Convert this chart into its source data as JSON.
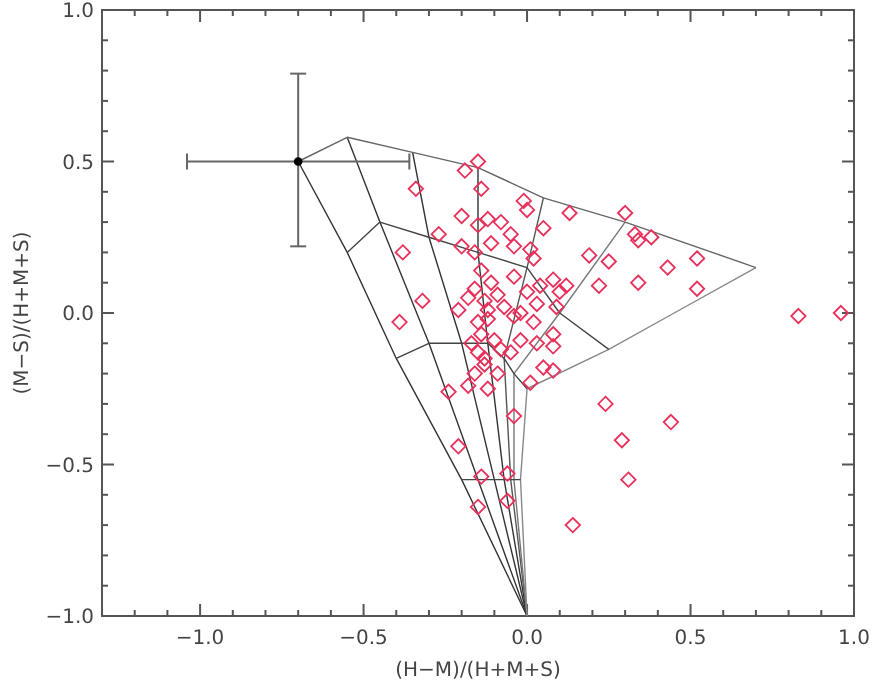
{
  "chart_data": {
    "type": "scatter",
    "xlabel": "(H−M)/(H+M+S)",
    "ylabel": "(M−S)/(H+M+S)",
    "xlim": [
      -1.3,
      1.0
    ],
    "ylim": [
      -1.0,
      1.0
    ],
    "xticks": [
      {
        "value": -1.2,
        "label": null
      },
      {
        "value": -1.1,
        "label": null
      },
      {
        "value": -1,
        "label": "−1.0"
      },
      {
        "value": -0.9,
        "label": null
      },
      {
        "value": -0.8,
        "label": null
      },
      {
        "value": -0.7,
        "label": null
      },
      {
        "value": -0.6,
        "label": null
      },
      {
        "value": -0.5,
        "label": "−0.5"
      },
      {
        "value": -0.4,
        "label": null
      },
      {
        "value": -0.3,
        "label": null
      },
      {
        "value": -0.2,
        "label": null
      },
      {
        "value": -0.1,
        "label": null
      },
      {
        "value": 0,
        "label": "0.0"
      },
      {
        "value": 0.1,
        "label": null
      },
      {
        "value": 0.2,
        "label": null
      },
      {
        "value": 0.3,
        "label": null
      },
      {
        "value": 0.4,
        "label": null
      },
      {
        "value": 0.5,
        "label": "0.5"
      },
      {
        "value": 0.6,
        "label": null
      },
      {
        "value": 0.7,
        "label": null
      },
      {
        "value": 0.8,
        "label": null
      },
      {
        "value": 0.9,
        "label": null
      },
      {
        "value": 1,
        "label": "1.0"
      }
    ],
    "yticks": [
      {
        "value": -1,
        "label": "−1.0"
      },
      {
        "value": -0.9,
        "label": null
      },
      {
        "value": -0.8,
        "label": null
      },
      {
        "value": -0.7,
        "label": null
      },
      {
        "value": -0.6,
        "label": null
      },
      {
        "value": -0.5,
        "label": "−0.5"
      },
      {
        "value": -0.4,
        "label": null
      },
      {
        "value": -0.3,
        "label": null
      },
      {
        "value": -0.2,
        "label": null
      },
      {
        "value": -0.1,
        "label": null
      },
      {
        "value": 0,
        "label": "0.0"
      },
      {
        "value": 0.1,
        "label": null
      },
      {
        "value": 0.2,
        "label": null
      },
      {
        "value": 0.3,
        "label": null
      },
      {
        "value": 0.4,
        "label": null
      },
      {
        "value": 0.5,
        "label": "0.5"
      },
      {
        "value": 0.6,
        "label": null
      },
      {
        "value": 0.7,
        "label": null
      },
      {
        "value": 0.8,
        "label": null
      },
      {
        "value": 0.9,
        "label": null
      },
      {
        "value": 1,
        "label": "1.0"
      }
    ],
    "series": [
      {
        "type": "line",
        "color": "#333333",
        "marker": "none",
        "x": [
          0,
          -0.2,
          -0.4,
          -0.55,
          -0.7
        ],
        "values": [
          -1,
          -0.55,
          -0.15,
          0.2,
          0.5
        ]
      },
      {
        "type": "line",
        "color": "#333333",
        "marker": "none",
        "x": [
          0,
          -0.15,
          -0.3,
          -0.45,
          -0.55
        ],
        "values": [
          -1,
          -0.55,
          -0.1,
          0.3,
          0.58
        ]
      },
      {
        "type": "line",
        "color": "#333333",
        "marker": "none",
        "x": [
          0,
          -0.1,
          -0.2,
          -0.3,
          -0.35
        ],
        "values": [
          -1,
          -0.55,
          -0.1,
          0.25,
          0.53
        ]
      },
      {
        "type": "line",
        "color": "#333333",
        "marker": "none",
        "x": [
          0,
          -0.07,
          -0.12,
          -0.15,
          -0.15
        ],
        "values": [
          -1,
          -0.55,
          -0.1,
          0.2,
          0.48
        ]
      },
      {
        "type": "line",
        "color": "#555555",
        "marker": "none",
        "x": [
          0,
          -0.05,
          -0.07,
          0,
          0.05
        ],
        "values": [
          -1,
          -0.55,
          -0.15,
          0.15,
          0.38
        ]
      },
      {
        "type": "line",
        "color": "#777777",
        "marker": "none",
        "x": [
          0,
          -0.04,
          -0.04,
          0.1,
          0.3
        ],
        "values": [
          -1,
          -0.55,
          -0.2,
          0,
          0.3
        ]
      },
      {
        "type": "line",
        "color": "#888888",
        "marker": "none",
        "x": [
          0,
          -0.02,
          0,
          0.25,
          0.45,
          0.7
        ],
        "values": [
          -1,
          -0.55,
          -0.25,
          -0.12,
          0,
          0.15
        ]
      },
      {
        "type": "line",
        "color": "#444444",
        "marker": "none",
        "x": [
          -0.2,
          -0.15,
          -0.1,
          -0.07,
          -0.05,
          -0.04,
          -0.02
        ],
        "values": [
          -0.55,
          -0.55,
          -0.55,
          -0.55,
          -0.55,
          -0.55,
          -0.55
        ]
      },
      {
        "type": "line",
        "color": "#444444",
        "marker": "none",
        "x": [
          -0.4,
          -0.3,
          -0.2,
          -0.12,
          -0.07,
          -0.04,
          0
        ],
        "values": [
          -0.15,
          -0.1,
          -0.1,
          -0.1,
          -0.15,
          -0.2,
          -0.25
        ]
      },
      {
        "type": "line",
        "color": "#444444",
        "marker": "none",
        "x": [
          -0.55,
          -0.45,
          -0.3,
          -0.15,
          0,
          0.1,
          0.25
        ],
        "values": [
          0.2,
          0.3,
          0.25,
          0.2,
          0.15,
          0,
          -0.12
        ]
      },
      {
        "type": "line",
        "color": "#666666",
        "marker": "none",
        "x": [
          -0.7,
          -0.55,
          -0.35,
          -0.15,
          0.05,
          0.3,
          0.7
        ],
        "values": [
          0.5,
          0.58,
          0.53,
          0.48,
          0.38,
          0.3,
          0.15
        ]
      },
      {
        "type": "scatter",
        "color": "#e8305a",
        "marker": "diamond",
        "x": [
          -0.34,
          -0.19,
          -0.15,
          -0.14,
          -0.2,
          -0.15,
          -0.12,
          -0.08,
          -0.27,
          -0.38,
          -0.2,
          -0.16,
          -0.11,
          -0.32,
          -0.21,
          -0.16,
          -0.13,
          -0.11,
          -0.07,
          -0.04,
          -0.02,
          -0.01,
          0,
          0.13,
          0.3,
          -0.05,
          0.05,
          -0.04,
          0.01,
          0.02,
          0.19,
          0.25,
          0.33,
          0.34,
          0.38,
          0.43,
          0.52,
          0.52,
          0.34,
          0.22,
          0.12,
          0.08,
          0.04,
          0.1,
          0,
          0.03,
          0.09,
          -0.12,
          -0.04,
          0.02,
          0.08,
          -0.02,
          0.03,
          0.08,
          -0.08,
          -0.05,
          0.83,
          0.96,
          0.05,
          0.08,
          -0.13,
          -0.09,
          0.01,
          -0.12,
          -0.24,
          -0.18,
          -0.04,
          0.24,
          0.44,
          -0.39,
          0.29,
          0.31,
          -0.21,
          -0.14,
          -0.06,
          -0.06,
          -0.15,
          0.14,
          -0.15,
          -0.14,
          -0.12,
          -0.17,
          -0.15,
          -0.1,
          -0.13,
          -0.16,
          -0.18,
          -0.14,
          -0.09
        ],
        "values": [
          0.41,
          0.47,
          0.5,
          0.41,
          0.32,
          0.29,
          0.31,
          0.3,
          0.26,
          0.2,
          0.22,
          0.2,
          0.23,
          0.04,
          0.01,
          0.08,
          0.04,
          0.1,
          0.02,
          0.12,
          0,
          0.37,
          0.34,
          0.33,
          0.33,
          0.26,
          0.28,
          0.22,
          0.21,
          0.18,
          0.19,
          0.17,
          0.26,
          0.24,
          0.25,
          0.15,
          0.18,
          0.08,
          0.1,
          0.09,
          0.09,
          0.11,
          0.09,
          0.07,
          0.07,
          0.03,
          0.02,
          0.01,
          -0.01,
          -0.03,
          -0.07,
          -0.09,
          -0.1,
          -0.11,
          -0.12,
          -0.13,
          -0.01,
          0,
          -0.18,
          -0.19,
          -0.15,
          -0.2,
          -0.23,
          -0.25,
          -0.26,
          -0.24,
          -0.34,
          -0.3,
          -0.36,
          -0.03,
          -0.42,
          -0.55,
          -0.44,
          -0.54,
          -0.53,
          -0.62,
          -0.64,
          -0.7,
          -0.03,
          -0.07,
          -0.02,
          -0.1,
          -0.13,
          -0.09,
          -0.17,
          -0.2,
          0.05,
          0.14,
          0.06
        ]
      },
      {
        "type": "scatter",
        "color": "#000000",
        "marker": "circle",
        "x": [
          -0.7
        ],
        "values": [
          0.5
        ],
        "errors": [
          [
            0.22,
            0.79
          ]
        ],
        "xerrors": [
          0.34
        ]
      }
    ]
  }
}
